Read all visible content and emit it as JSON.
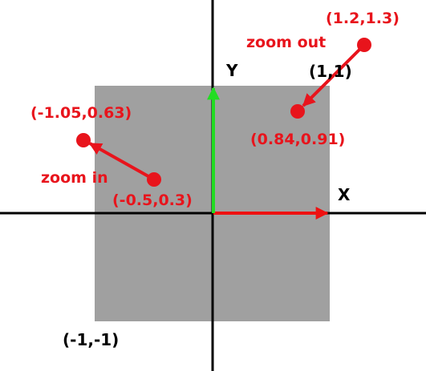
{
  "diagram": {
    "axes": {
      "x_label": "X",
      "y_label": "Y",
      "axis_color": "#000000",
      "x_arrow_color": "#ee1111",
      "y_arrow_color": "#22dd22"
    },
    "region": {
      "fill_color": "#a0a0a0",
      "corner_top_right": "(1,1)",
      "corner_bottom_left": "(-1,-1)"
    },
    "zoom_in": {
      "label": "zoom in",
      "from_point": "(-0.5,0.3)",
      "to_point": "(-1.05,0.63)",
      "color": "#e8141c"
    },
    "zoom_out": {
      "label": "zoom out",
      "from_point": "(1.2,1.3)",
      "to_point": "(0.84,0.91)",
      "color": "#e8141c"
    }
  }
}
